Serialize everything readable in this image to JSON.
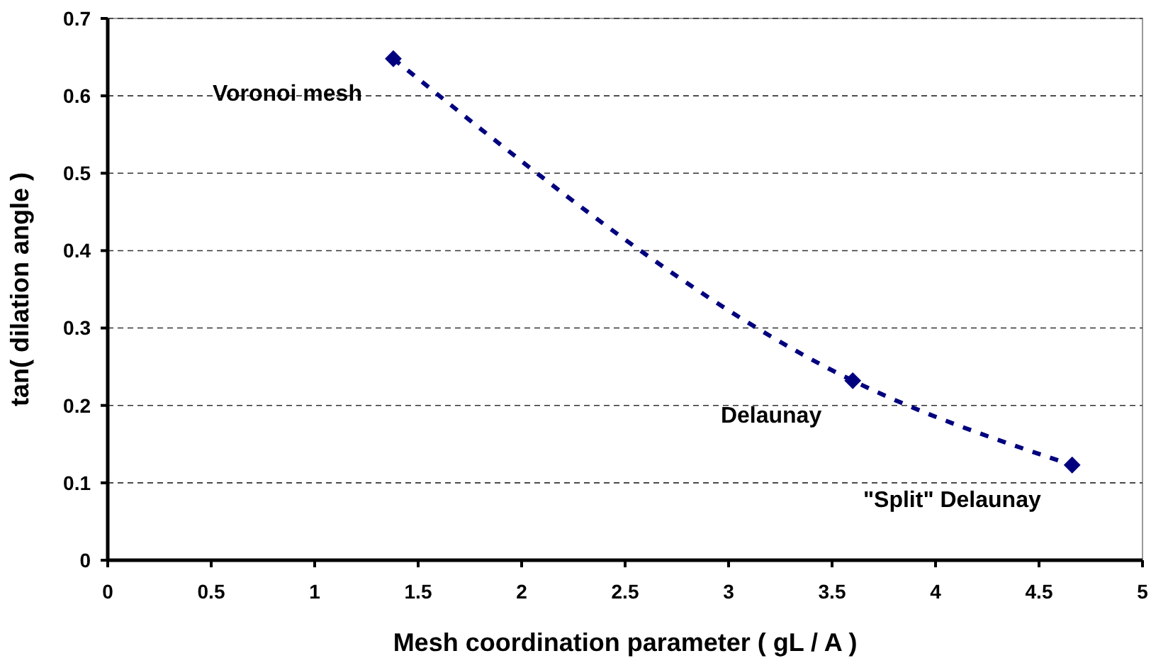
{
  "chart_data": {
    "type": "line",
    "xlabel": "Mesh coordination parameter ( gL / A )",
    "ylabel": "tan( dilation angle )",
    "x": [
      1.38,
      3.6,
      4.66
    ],
    "series": [
      {
        "color": "#00007f",
        "values": [
          0.648,
          0.232,
          0.123
        ]
      }
    ],
    "xlim": [
      0,
      5
    ],
    "xticks": [
      0,
      0.5,
      1,
      1.5,
      2,
      2.5,
      3,
      3.5,
      4,
      4.5,
      5
    ],
    "ylim": [
      0,
      0.7
    ],
    "yticks": [
      0,
      0.1,
      0.2,
      0.3,
      0.4,
      0.5,
      0.6,
      0.7
    ],
    "grid": "y",
    "marker": "diamond",
    "line_style": "dashed",
    "annotations": [
      {
        "text": "Voronoi mesh",
        "x": 1.38,
        "y": 0.648
      },
      {
        "text": "Delaunay",
        "x": 3.6,
        "y": 0.232
      },
      {
        "text": "\"Split\" Delaunay",
        "x": 4.66,
        "y": 0.123
      }
    ]
  }
}
